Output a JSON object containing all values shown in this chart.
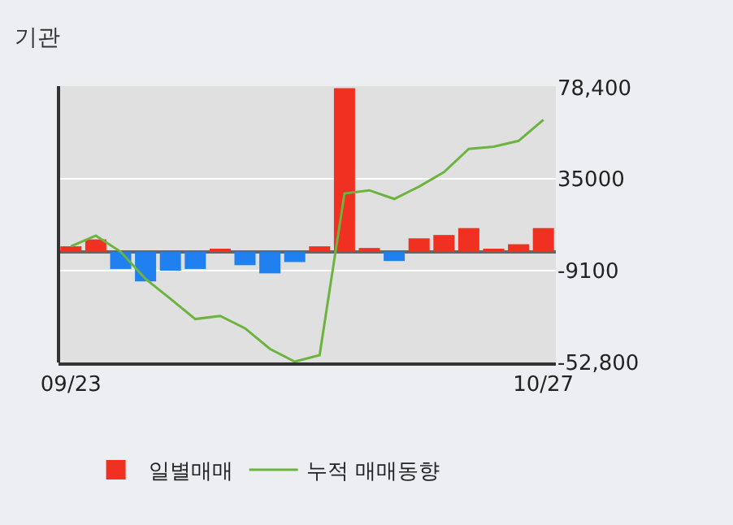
{
  "chart_data": {
    "type": "bar",
    "title": "기관",
    "categories": [
      "09/23",
      null,
      null,
      null,
      null,
      null,
      null,
      null,
      null,
      null,
      null,
      null,
      null,
      null,
      null,
      null,
      null,
      null,
      null,
      "10/27"
    ],
    "series": [
      {
        "name": "일별매매",
        "colors": [
          "#f03020",
          "#f03020",
          "#2080f0",
          "#2080f0",
          "#2080f0",
          "#2080f0",
          "#f03020",
          "#2080f0",
          "#2080f0",
          "#2080f0",
          "#f03020",
          "#f03020",
          "#f03020",
          "#2080f0",
          "#f03020",
          "#f03020",
          "#f03020",
          "#f03020",
          "#f03020",
          "#f03020"
        ],
        "values": [
          2600,
          5900,
          -8200,
          -14100,
          -9000,
          -8200,
          1000,
          -6400,
          -10300,
          -4900,
          2600,
          78000,
          1800,
          -4400,
          6400,
          8000,
          11300,
          1000,
          3600,
          11300
        ]
      },
      {
        "name": "누적 매매동향",
        "type": "line",
        "color": "#6db33f",
        "values": [
          2600,
          7700,
          0,
          -12900,
          -22400,
          -32100,
          -30600,
          -36500,
          -46300,
          -52400,
          -49300,
          27800,
          29300,
          25200,
          31100,
          38000,
          49100,
          50100,
          52900,
          63000
        ]
      }
    ],
    "ylim": [
      -52800,
      79000
    ],
    "yticks": [
      {
        "value": 78400,
        "label": "78,400"
      },
      35000,
      -9100,
      {
        "value": -52800,
        "label": "-52,800"
      }
    ],
    "grid": "y",
    "legend": "bottom",
    "marker": "none"
  }
}
